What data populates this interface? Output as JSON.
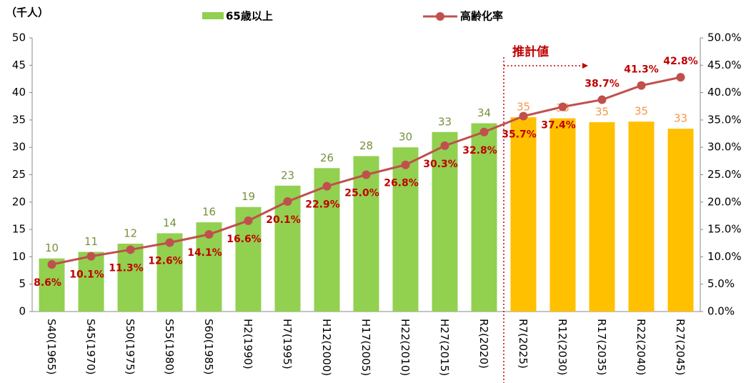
{
  "chart_data": {
    "type": "bar_line",
    "unit_label": "（千人）",
    "annotation": "推計値",
    "categories": [
      "S40(1965)",
      "S45(1970)",
      "S50(1975)",
      "S55(1980)",
      "S60(1985)",
      "H2(1990)",
      "H7(1995)",
      "H12(2000)",
      "H17(2005)",
      "H22(2010)",
      "H27(2015)",
      "R2(2020)",
      "R7(2025)",
      "R12(2030)",
      "R17(2035)",
      "R22(2040)",
      "R27(2045)"
    ],
    "series": [
      {
        "name": "65歳以上",
        "type": "bar",
        "color": "#92d050",
        "label_color": "#76923c",
        "colors": [
          "#92d050",
          "#92d050",
          "#92d050",
          "#92d050",
          "#92d050",
          "#92d050",
          "#92d050",
          "#92d050",
          "#92d050",
          "#92d050",
          "#92d050",
          "#92d050",
          "#ffc000",
          "#ffc000",
          "#ffc000",
          "#ffc000",
          "#ffc000"
        ],
        "label_colors": [
          "#76923c",
          "#76923c",
          "#76923c",
          "#76923c",
          "#76923c",
          "#76923c",
          "#76923c",
          "#76923c",
          "#76923c",
          "#76923c",
          "#76923c",
          "#76923c",
          "#f79646",
          "#f79646",
          "#f79646",
          "#f79646",
          "#f79646"
        ],
        "values": [
          9.7,
          10.9,
          12.4,
          14.3,
          16.3,
          19.1,
          23.0,
          26.2,
          28.4,
          30.0,
          32.8,
          34.4,
          35.5,
          35.3,
          34.6,
          34.7,
          33.4
        ],
        "value_labels": [
          "10",
          "11",
          "12",
          "14",
          "16",
          "19",
          "23",
          "26",
          "28",
          "30",
          "33",
          "34",
          "35",
          "35",
          "35",
          "35",
          "33"
        ]
      },
      {
        "name": "高齢化率",
        "type": "line",
        "axis": "y2",
        "color": "#c0504d",
        "label_color": "#c00000",
        "values": [
          8.6,
          10.1,
          11.3,
          12.6,
          14.1,
          16.6,
          20.1,
          22.9,
          25.0,
          26.8,
          30.3,
          32.8,
          35.7,
          37.4,
          38.7,
          41.3,
          42.8
        ],
        "value_labels": [
          "8.6%",
          "10.1%",
          "11.3%",
          "12.6%",
          "14.1%",
          "16.6%",
          "20.1%",
          "22.9%",
          "25.0%",
          "26.8%",
          "30.3%",
          "32.8%",
          "35.7%",
          "37.4%",
          "38.7%",
          "41.3%",
          "42.8%"
        ]
      }
    ],
    "ylim": [
      0,
      50
    ],
    "yticks": [
      0,
      5,
      10,
      15,
      20,
      25,
      30,
      35,
      40,
      45,
      50
    ],
    "y2lim": [
      0,
      50
    ],
    "y2ticks": [
      {
        "value": 0,
        "label": "0.0%"
      },
      {
        "value": 5,
        "label": "5.0%"
      },
      {
        "value": 10,
        "label": "10.0%"
      },
      {
        "value": 15,
        "label": "15.0%"
      },
      {
        "value": 20,
        "label": "20.0%"
      },
      {
        "value": 25,
        "label": "25.0%"
      },
      {
        "value": 30,
        "label": "30.0%"
      },
      {
        "value": 35,
        "label": "35.0%"
      },
      {
        "value": 40,
        "label": "40.0%"
      },
      {
        "value": 45,
        "label": "45.0%"
      },
      {
        "value": 50,
        "label": "50.0%"
      }
    ],
    "legend": "top"
  }
}
